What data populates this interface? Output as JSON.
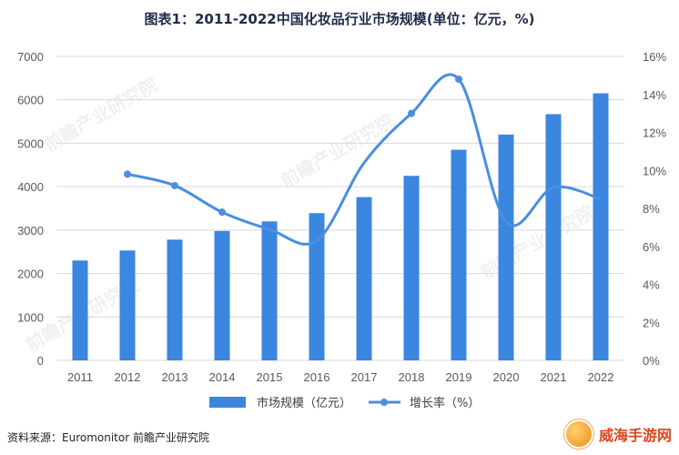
{
  "title": "图表1：2011-2022中国化妆品行业市场规模(单位：亿元，%)",
  "source": "资料来源：Euromonitor 前瞻产业研究院",
  "watermark": "前瞻产业研究院",
  "brand": "威海手游网",
  "colors": {
    "bar": "#3a86e0",
    "line": "#4a8ee0",
    "grid": "#d9d9d9"
  },
  "chart_data": {
    "type": "bar",
    "categories": [
      "2011",
      "2012",
      "2013",
      "2014",
      "2015",
      "2016",
      "2017",
      "2018",
      "2019",
      "2020",
      "2021",
      "2022"
    ],
    "series": [
      {
        "name": "市场规模（亿元）",
        "type": "bar",
        "axis": "left",
        "values": [
          2300,
          2530,
          2780,
          2980,
          3200,
          3390,
          3760,
          4250,
          4850,
          5200,
          5670,
          6150
        ]
      },
      {
        "name": "增长率（%）",
        "type": "line",
        "axis": "right",
        "values": [
          null,
          9.8,
          9.2,
          7.8,
          6.9,
          6.3,
          10.4,
          13.0,
          14.8,
          7.3,
          9.1,
          8.5
        ]
      }
    ],
    "ylim_left": [
      0,
      7000
    ],
    "ylim_right": [
      0,
      16
    ],
    "yticks_left": [
      "0",
      "1000",
      "2000",
      "3000",
      "4000",
      "5000",
      "6000",
      "7000"
    ],
    "yticks_right": [
      "0%",
      "2%",
      "4%",
      "6%",
      "8%",
      "10%",
      "12%",
      "14%",
      "16%"
    ],
    "grid": true,
    "legend_position": "bottom"
  }
}
